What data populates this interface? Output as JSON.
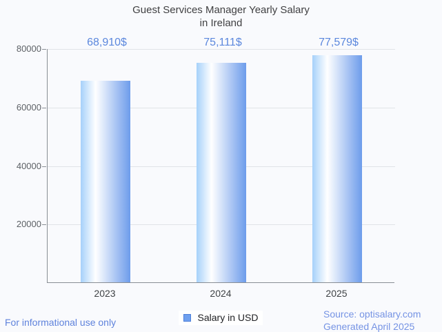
{
  "title": {
    "line1": "Guest Services Manager Yearly Salary",
    "line2": "in Ireland"
  },
  "chart_data": {
    "type": "bar",
    "title": "Guest Services Manager Yearly Salary in Ireland",
    "categories": [
      "2023",
      "2024",
      "2025"
    ],
    "series": [
      {
        "name": "Salary in USD",
        "values": [
          68910,
          75111,
          77579
        ]
      }
    ],
    "value_labels": [
      "68,910$",
      "75,111$",
      "77,579$"
    ],
    "xlabel": "",
    "ylabel": "",
    "ylim": [
      0,
      80000
    ],
    "yticks": [
      20000,
      40000,
      60000,
      80000
    ],
    "ytick_labels": [
      "20000",
      "40000",
      "60000",
      "80000"
    ],
    "grid": true,
    "legend_position": "bottom-center",
    "bar_gradient": [
      "#a6d1fa",
      "#ffffff",
      "#6d9ceb"
    ]
  },
  "legend": {
    "label": "Salary in USD",
    "swatch_color": "#6fa0ef"
  },
  "footer": {
    "disclaimer": "For informational use only",
    "source": "Source: optisalary.com",
    "generated": "Generated April 2025"
  },
  "colors": {
    "background": "#f9fafd",
    "title_text": "#3f3f41",
    "value_label_text": "#5b87dd",
    "axis_line": "#888d93",
    "gridline": "#e0e3e7",
    "ytick_text": "#5d6166",
    "category_text": "#3f4245",
    "footer_left_text": "#5e82dc",
    "footer_right_text": "#7593e4"
  }
}
